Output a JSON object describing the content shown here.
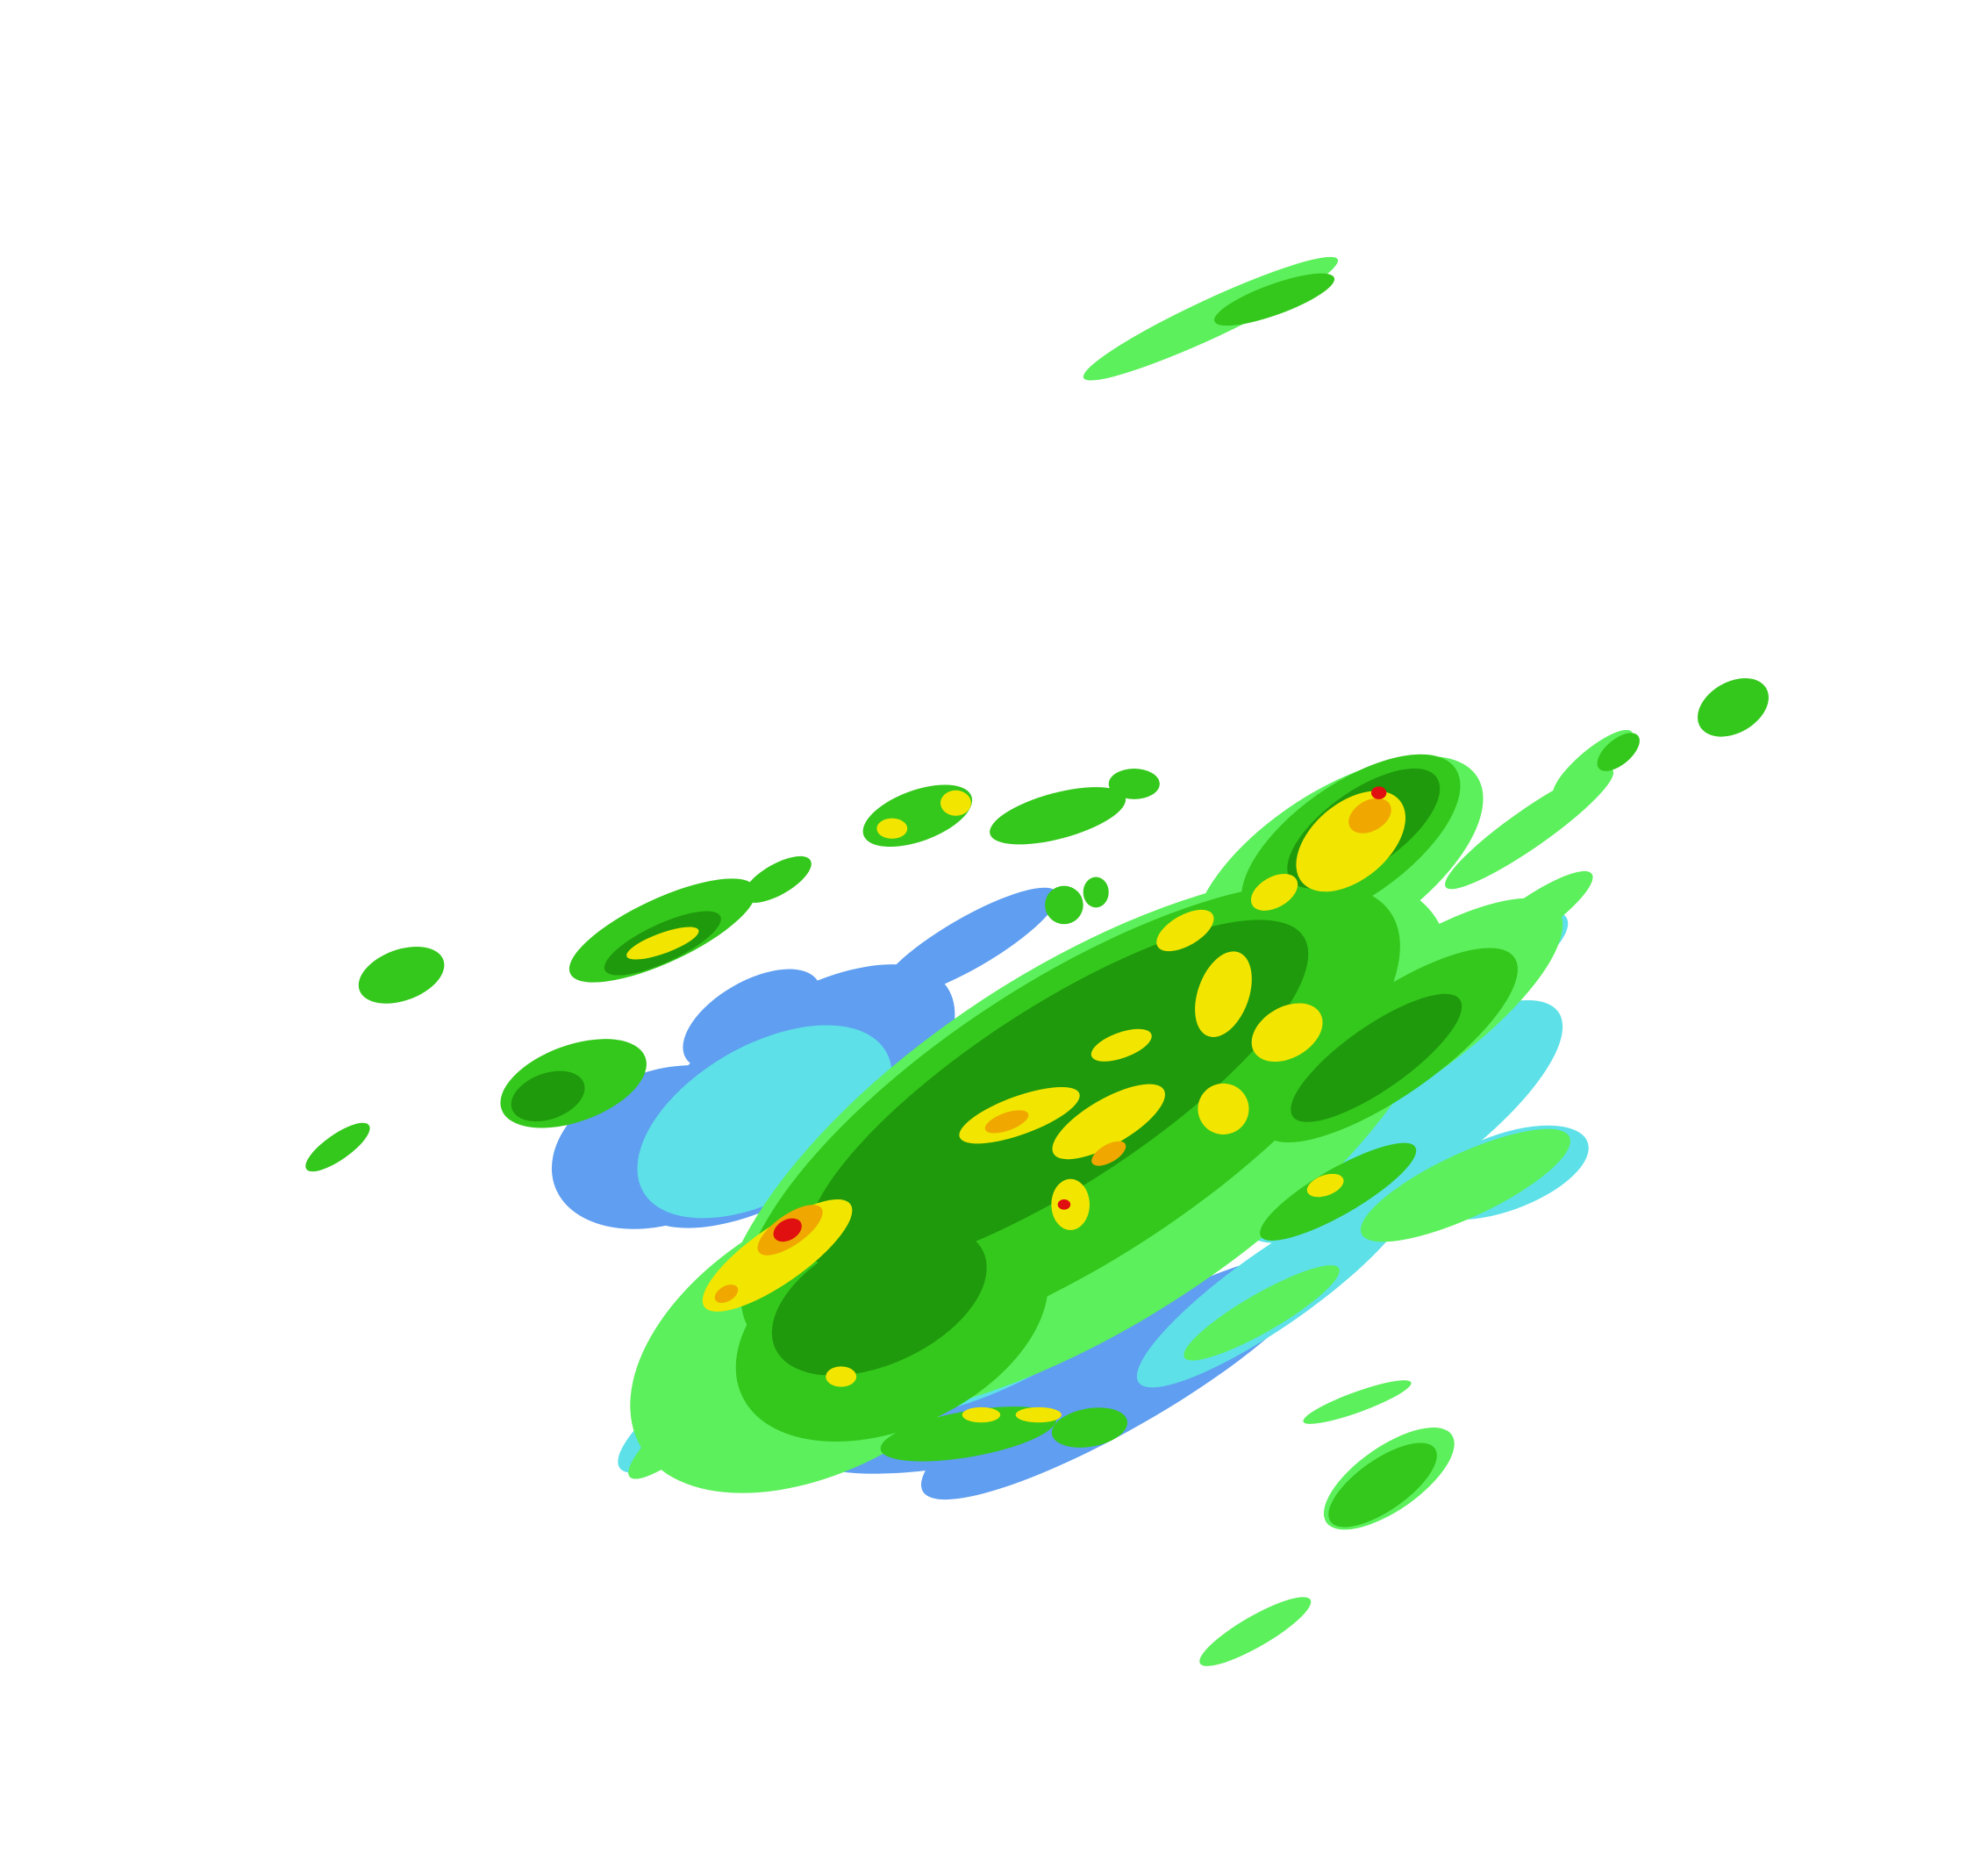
{
  "map": {
    "type": "weather-radar-reflectivity",
    "background": "#ffffff",
    "palette": {
      "light_blue": "#5f9ef0",
      "cyan": "#5ee0e8",
      "light_green": "#5cf05c",
      "green": "#34c81c",
      "dark_green": "#1f9a0c",
      "yellow": "#f2e600",
      "orange": "#f0a800",
      "red": "#e01010"
    }
  }
}
